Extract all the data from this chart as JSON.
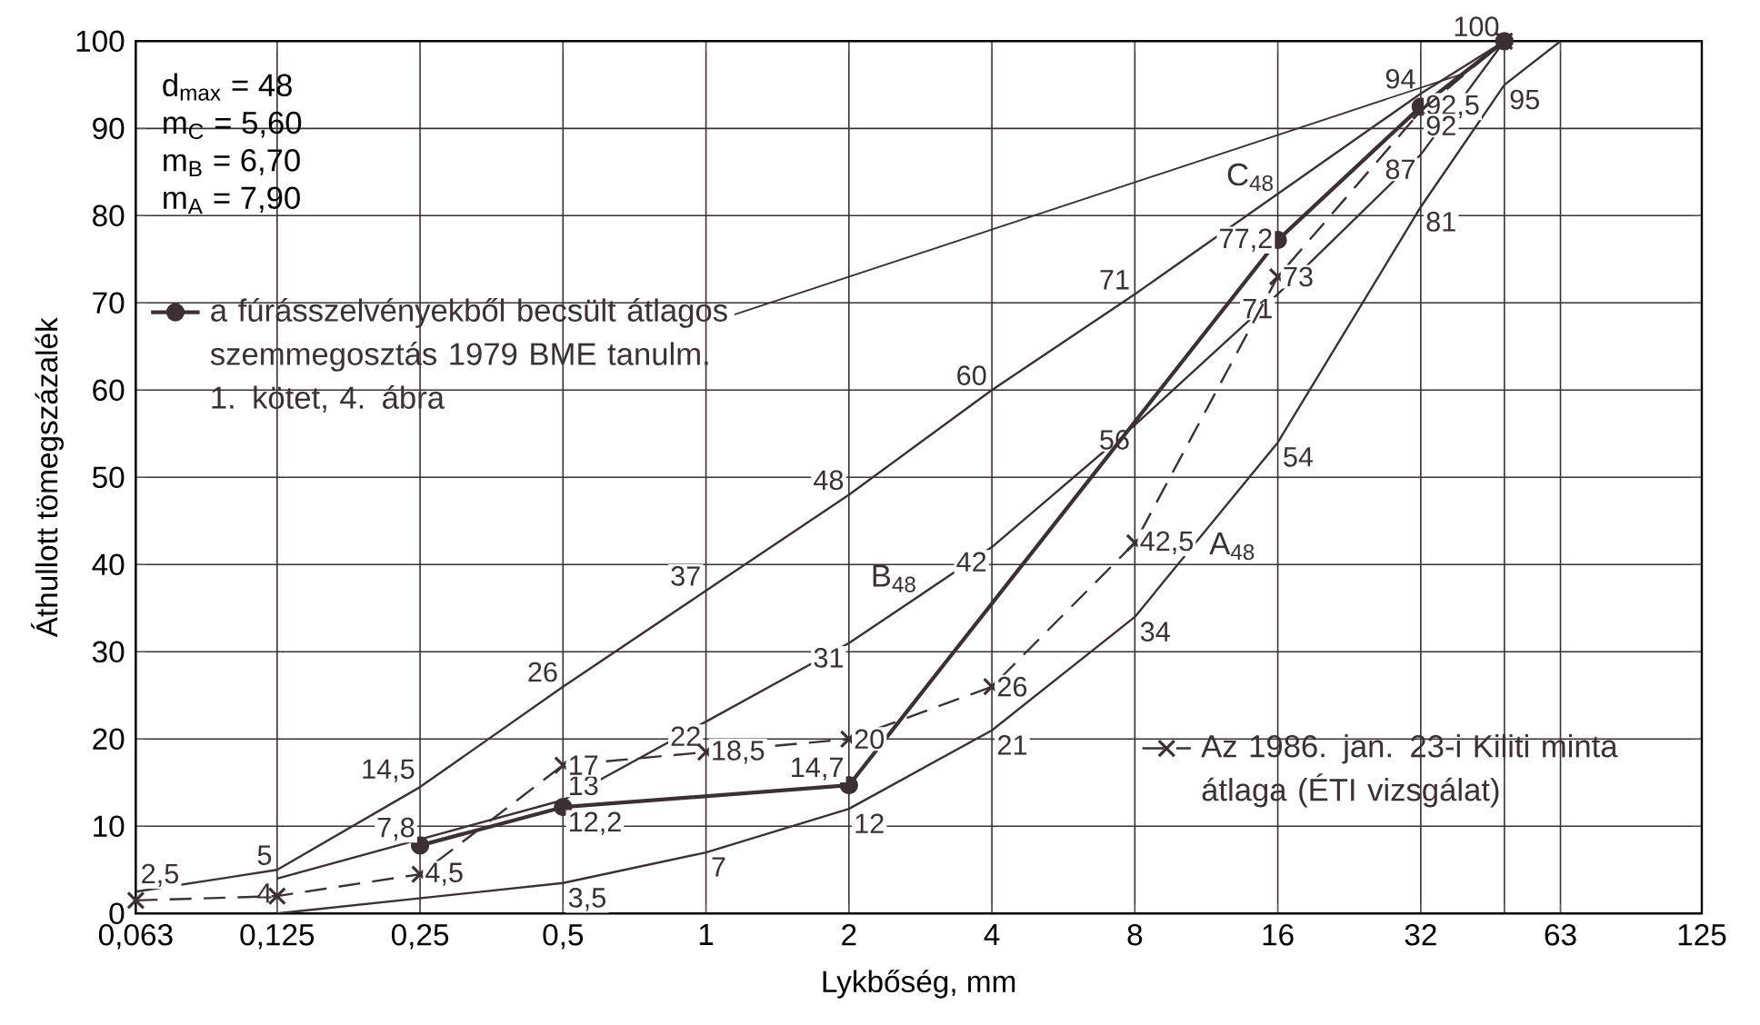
{
  "chart_data": {
    "type": "line",
    "xlabel": "Lykbőség, mm",
    "ylabel": "Áthullott tömegszázalék",
    "log": "x",
    "grid": true,
    "legend": "left",
    "xlim": [
      0.063,
      125
    ],
    "ylim": [
      0,
      100
    ],
    "xticks": [
      {
        "value": 0.063,
        "label": "0,063"
      },
      {
        "value": 0.125,
        "label": "0,125"
      },
      {
        "value": 0.25,
        "label": "0,25"
      },
      {
        "value": 0.5,
        "label": "0,5"
      },
      1,
      2,
      4,
      8,
      16,
      32,
      {
        "value": 48,
        "label": null
      },
      63,
      125
    ],
    "yticks": [
      0,
      10,
      20,
      30,
      40,
      50,
      60,
      70,
      80,
      90,
      100
    ],
    "annotations": [
      "d$_{max}$ = 48",
      "m$_{C}$ = 5,60",
      "m$_{B}$ = 6,70",
      "m$_{A}$ = 7,90"
    ],
    "series": [
      {
        "name": "C$_{48}$",
        "color": "#3d3035",
        "x": [
          0.063,
          0.125,
          0.25,
          0.5,
          1,
          2,
          4,
          8,
          32,
          48
        ],
        "values": [
          2.5,
          5,
          14.5,
          26,
          37,
          48,
          60,
          71,
          94,
          100
        ],
        "value_labels": [
          "2,5",
          "5",
          "14,5",
          "26",
          "37",
          "48",
          "60",
          "71",
          "94",
          "100"
        ]
      },
      {
        "name": "B$_{48}$",
        "color": "#3d3035",
        "x": [
          0.125,
          0.5,
          1,
          2,
          4,
          8,
          16,
          32,
          48
        ],
        "values": [
          4,
          13,
          22,
          31,
          42,
          56,
          71,
          87,
          100
        ],
        "value_labels": [
          "4",
          "13",
          "22",
          "31",
          "42",
          "56",
          "71",
          "87",
          null
        ]
      },
      {
        "name": "A$_{48}$",
        "color": "#3d3035",
        "x": [
          0.125,
          0.5,
          1,
          2,
          4,
          8,
          16,
          32,
          48,
          63
        ],
        "values": [
          0,
          3.5,
          7,
          12,
          21,
          34,
          54,
          81,
          95,
          100
        ],
        "value_labels": [
          null,
          "3,5",
          "7",
          "12",
          "21",
          "34",
          "54",
          "81",
          "95",
          null
        ]
      },
      {
        "name": "a fúrásszelvényekből becsült átlagos szemmegosztás 1979 BME tanulm. 1. kötet, 4. ábra",
        "color": "#3d3035",
        "marker": "circle",
        "x": [
          0.25,
          0.5,
          2,
          16,
          32,
          48
        ],
        "values": [
          7.8,
          12.2,
          14.7,
          77.2,
          92.5,
          100
        ],
        "value_labels": [
          "7,8",
          "12,2",
          "14,7",
          "77,2",
          "92,5",
          null
        ]
      },
      {
        "name": "Az 1986. jan. 23-i Kiliti minta átlaga (ÉTI vizsgálat)",
        "color": "#3d3035",
        "marker": "cross",
        "line_style": "dashed",
        "x": [
          0.063,
          0.125,
          0.25,
          0.5,
          1,
          2,
          4,
          8,
          16,
          32,
          48
        ],
        "values": [
          1.5,
          2,
          4.5,
          17,
          18.5,
          20,
          26,
          42.5,
          73,
          92,
          100
        ],
        "value_labels": [
          null,
          null,
          "4,5",
          "17",
          "18,5",
          "20",
          "26",
          "42,5",
          "73",
          "92",
          null
        ]
      }
    ]
  }
}
